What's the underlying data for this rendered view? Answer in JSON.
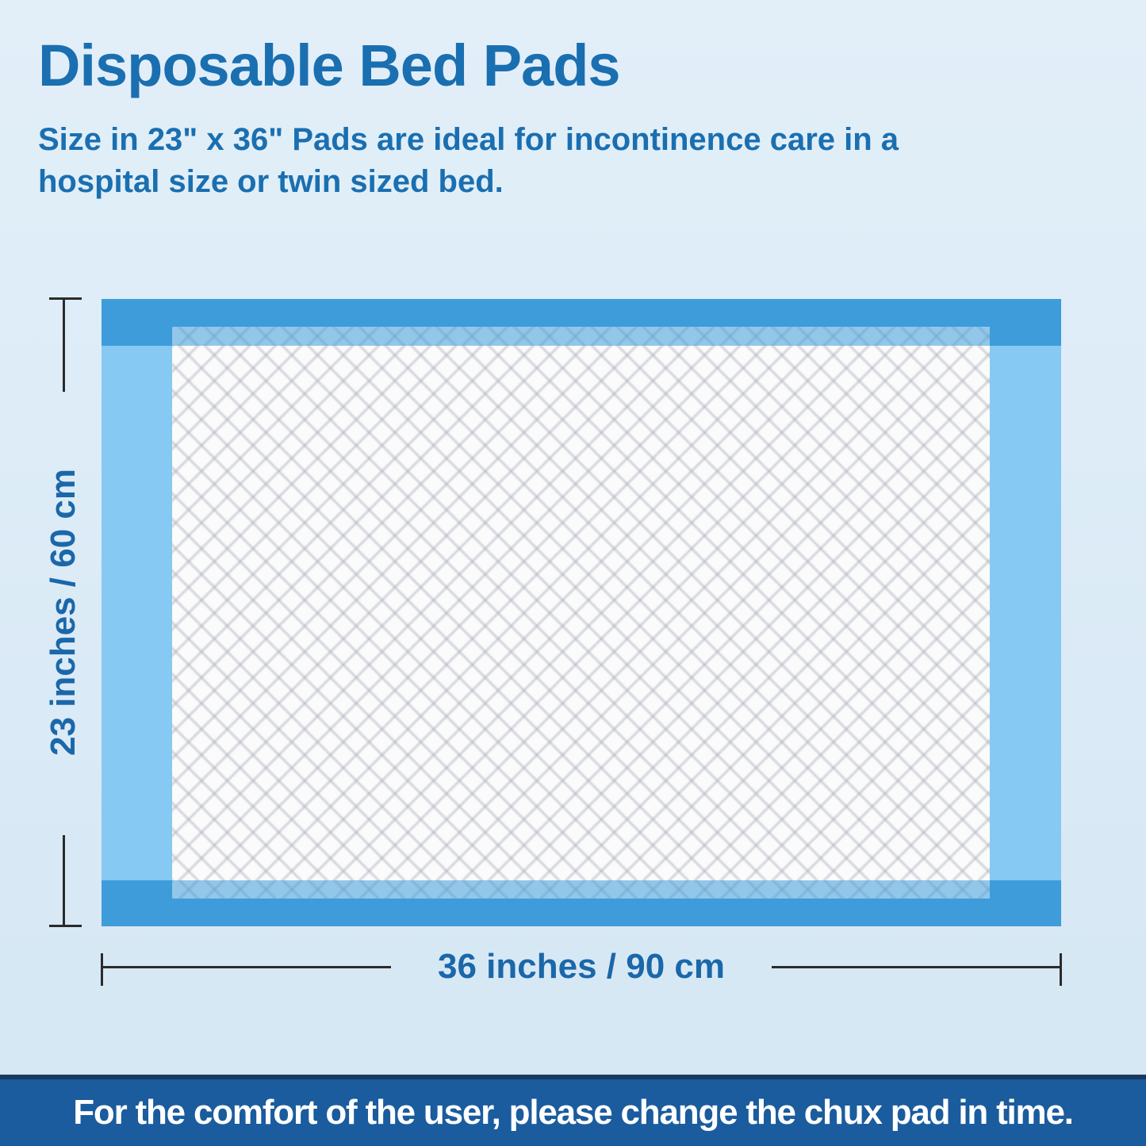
{
  "header": {
    "title": "Disposable Bed Pads",
    "subtitle_line1": "Size in 23\" x 36\" Pads are ideal for incontinence care in a",
    "subtitle_line2": "hospital size or twin sized bed."
  },
  "diagram": {
    "height_label": "23 inches / 60 cm",
    "width_label": "36 inches / 90 cm"
  },
  "footer": {
    "message": "For the comfort of the user, please change the chux pad in time."
  },
  "colors": {
    "page-bg-top": "#E2EFF9",
    "page-bg-bottom": "#D5E7F4",
    "title-blue": "#1A6FB0",
    "dim-blue": "#1B67A9",
    "pad-light-blue": "#86C9F2",
    "pad-dark-blue": "#3E9CDA",
    "banner-blue": "#1A5C9E",
    "banner-edge": "#1B3A60",
    "line-color": "#2B2B2B"
  }
}
